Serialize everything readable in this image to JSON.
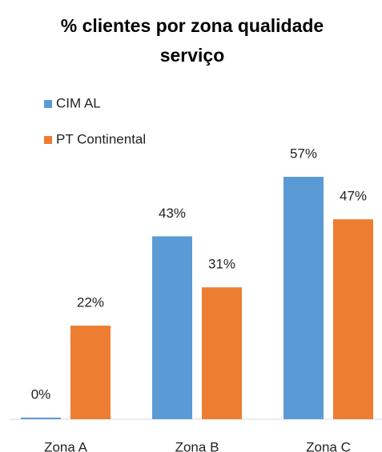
{
  "chart_data": {
    "type": "bar",
    "title": "% clientes por zona qualidade serviço",
    "categories": [
      "Zona A",
      "Zona B",
      "Zona C"
    ],
    "series": [
      {
        "name": "CIM AL",
        "color": "#5b9bd5",
        "values": [
          0,
          43,
          57
        ],
        "value_labels": [
          "0%",
          "43%",
          "57%"
        ]
      },
      {
        "name": "PT Continental",
        "color": "#ed7d31",
        "values": [
          22,
          31,
          47
        ],
        "value_labels": [
          "22%",
          "31%",
          "47%"
        ]
      }
    ],
    "legend": "top-left"
  }
}
